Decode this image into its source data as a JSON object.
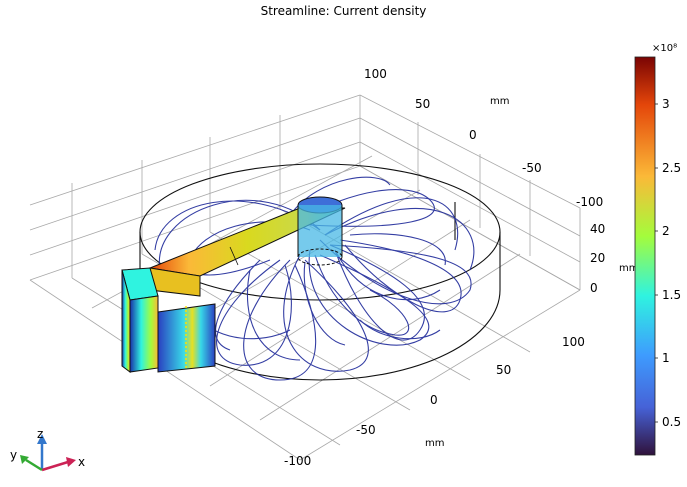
{
  "title": "Streamline: Current density",
  "colorbar": {
    "exponent_label": "×10⁸",
    "ticks": [
      "3",
      "2.5",
      "2",
      "1.5",
      "1",
      "0.5"
    ],
    "colors": [
      "#7a0403",
      "#e4460a",
      "#fbb938",
      "#a4fc3c",
      "#2ff3e0",
      "#3e9bfe",
      "#4662d7",
      "#30123b"
    ]
  },
  "axes": {
    "x_ticks": [
      "100",
      "50",
      "0",
      "-50",
      "-100"
    ],
    "x_unit": "mm",
    "y_ticks": [
      "100",
      "50",
      "0",
      "-50",
      "-100"
    ],
    "y_unit": "mm",
    "z_ticks": [
      "40",
      "20",
      "0"
    ],
    "z_unit": "mm"
  },
  "triad": {
    "x_label": "x",
    "y_label": "y",
    "z_label": "z",
    "x_color": "#cc2255",
    "y_color": "#33aa33",
    "z_color": "#3377cc"
  }
}
